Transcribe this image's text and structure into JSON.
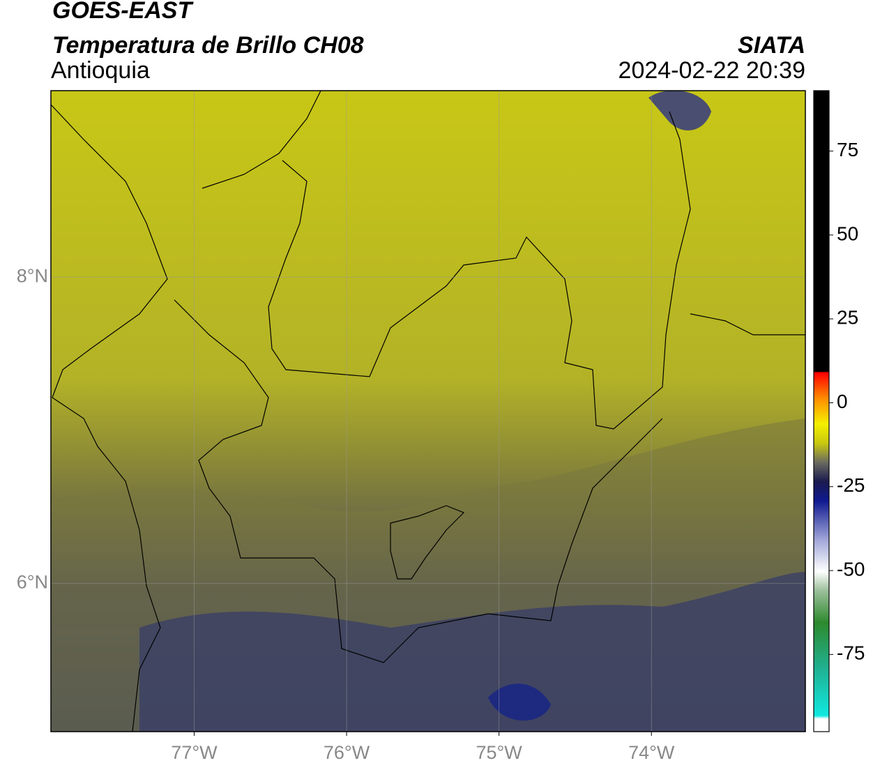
{
  "header": {
    "title": "GOES-EAST",
    "subtitle": "Temperatura de Brillo CH08",
    "region": "Antioquia",
    "source": "SIATA",
    "datetime": "2024-02-22 20:39"
  },
  "map": {
    "xlim": [
      -77.94,
      -72.99
    ],
    "ylim": [
      5.03,
      9.22
    ],
    "xticks": [
      {
        "value": -77,
        "label": "77°W"
      },
      {
        "value": -76,
        "label": "76°W"
      },
      {
        "value": -75,
        "label": "75°W"
      },
      {
        "value": -74,
        "label": "74°W"
      }
    ],
    "yticks": [
      {
        "value": 8,
        "label": "8°N"
      },
      {
        "value": 6,
        "label": "6°N"
      }
    ],
    "grid": true
  },
  "colorbar": {
    "lim": [
      -98,
      93
    ],
    "ticks": [
      75,
      50,
      25,
      0,
      -25,
      -50,
      -75
    ]
  }
}
